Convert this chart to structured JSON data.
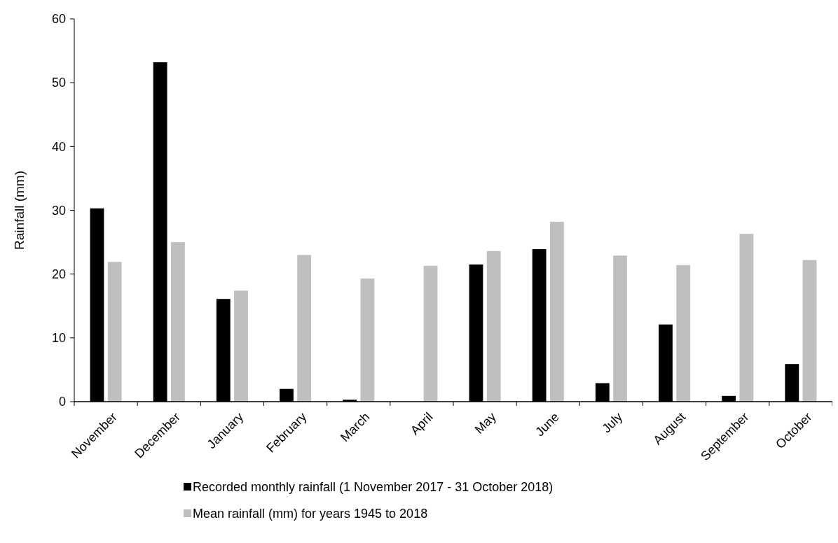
{
  "chart_data": {
    "type": "bar",
    "ylabel": "Rainfall (mm)",
    "categories": [
      "November",
      "December",
      "January",
      "February",
      "March",
      "April",
      "May",
      "June",
      "July",
      "August",
      "September",
      "October"
    ],
    "series": [
      {
        "name": "Recorded monthly rainfall (1 November 2017 - 31 October 2018)",
        "color": "#000000",
        "values": [
          30.3,
          53.2,
          16.1,
          2.0,
          0.3,
          0,
          21.5,
          23.9,
          2.9,
          12.1,
          0.9,
          5.9
        ]
      },
      {
        "name": "Mean rainfall (mm) for years 1945 to 2018",
        "color": "#bfbfbf",
        "values": [
          21.9,
          25.0,
          17.4,
          23.0,
          19.3,
          21.3,
          23.6,
          28.2,
          22.9,
          21.4,
          26.3,
          22.2
        ]
      }
    ],
    "ylim": [
      0,
      60
    ],
    "yticks": [
      0,
      10,
      20,
      30,
      40,
      50,
      60
    ],
    "grid": false,
    "legend": "bottom"
  }
}
